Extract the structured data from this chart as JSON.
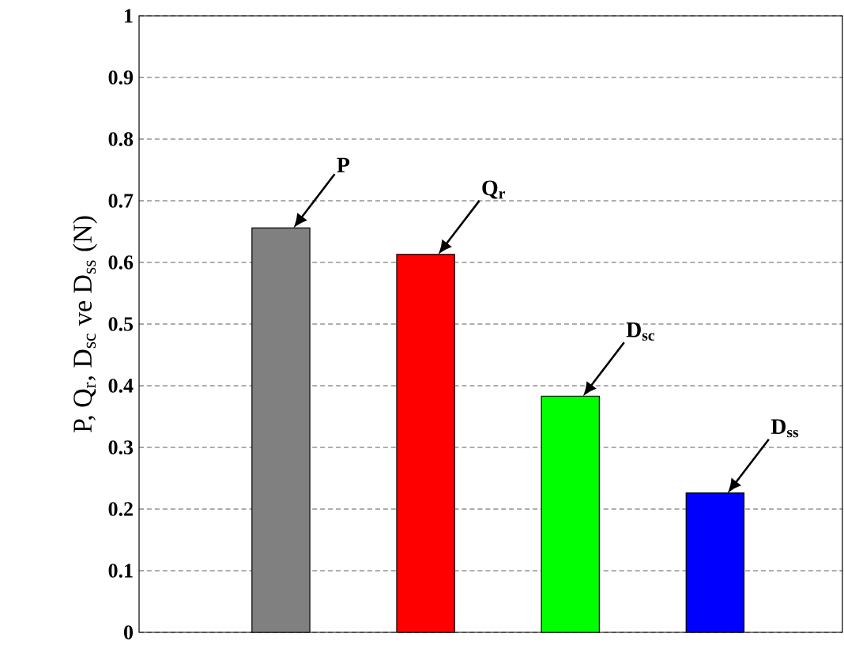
{
  "chart_data": {
    "type": "bar",
    "ylabel": "P, Q$_{r}$, D$_{sc}$ ve D$_{ss}$ (N)",
    "categories": [
      null,
      null,
      null,
      null
    ],
    "values": [
      0.656,
      0.613,
      0.383,
      0.226
    ],
    "colors": [
      "#808080",
      "#ff0000",
      "#00ff00",
      "#0000ff"
    ],
    "ylim": [
      0,
      1
    ],
    "yticks": [
      0,
      0.1,
      0.2,
      0.3,
      0.4,
      0.5,
      0.6,
      0.7,
      0.8,
      0.9,
      1
    ],
    "grid": "y",
    "tick_labels": "y",
    "annotations": [
      "P",
      "Q$_{r}$",
      "D$_{sc}$",
      "D$_{ss}$"
    ]
  }
}
